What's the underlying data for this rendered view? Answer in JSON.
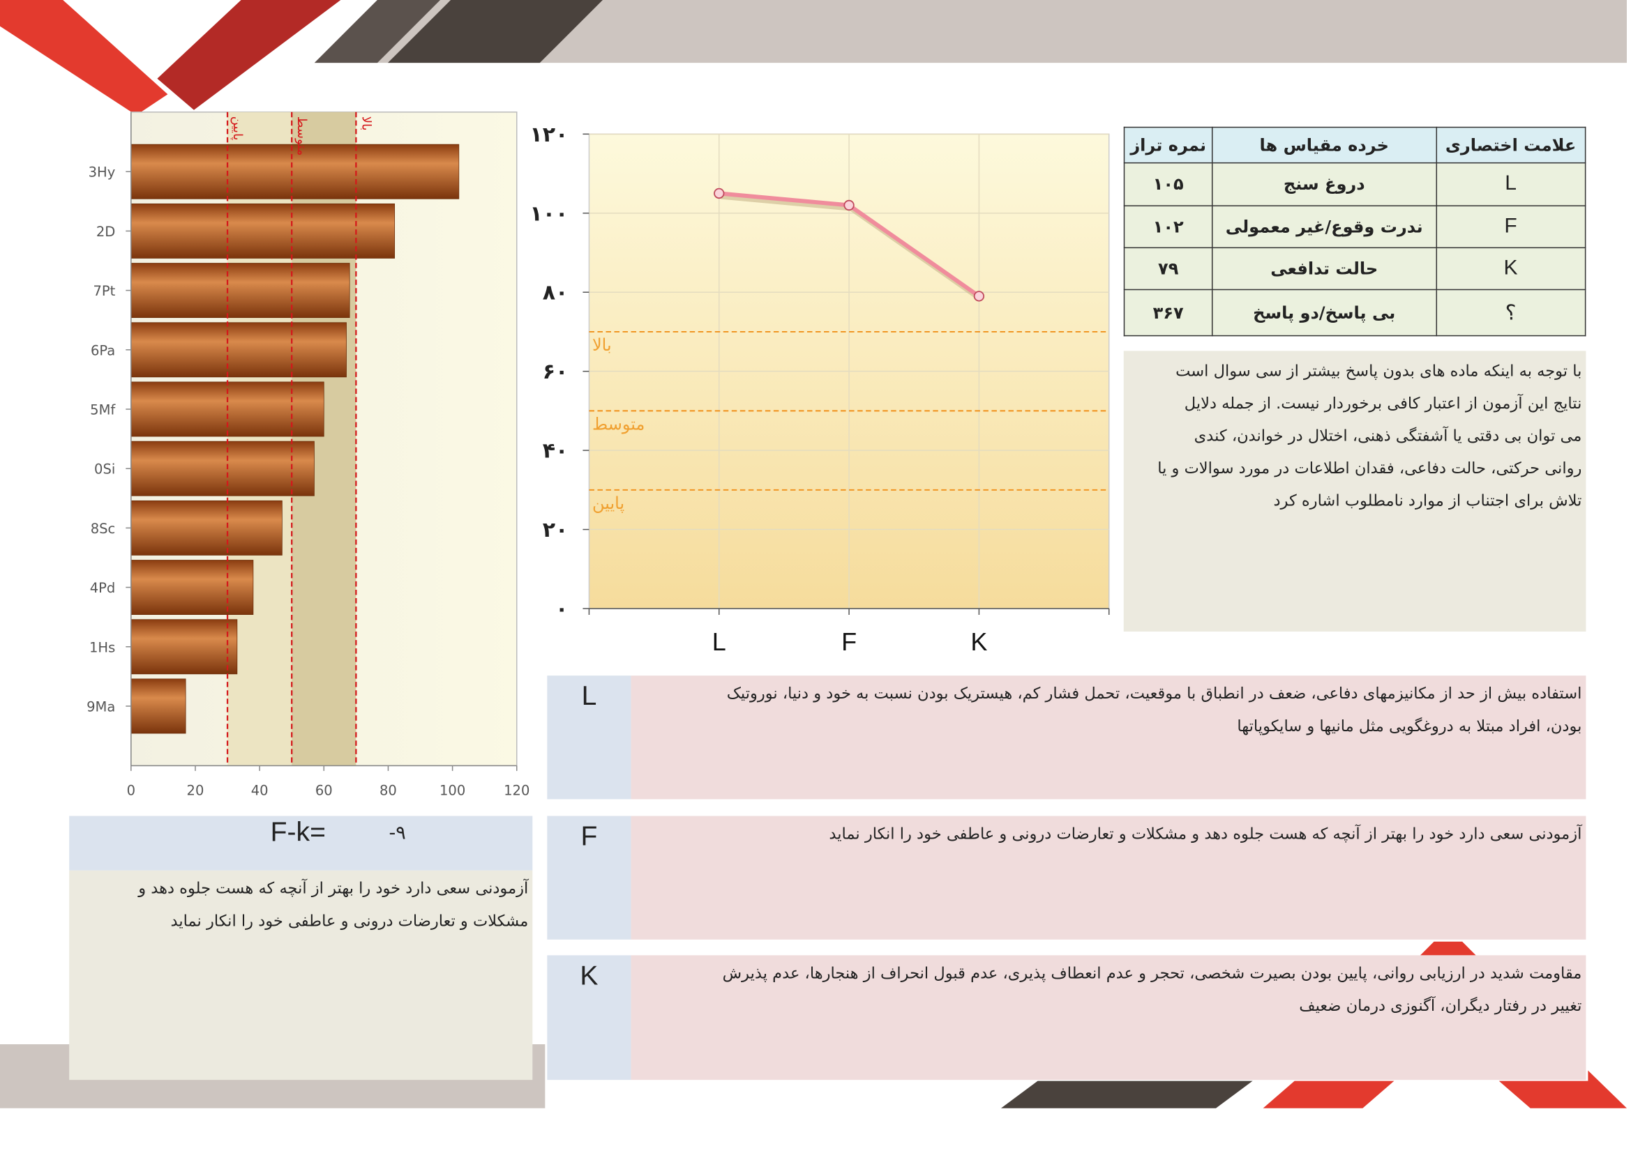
{
  "chart_data": [
    {
      "type": "hbar",
      "categories": [
        "3Hy",
        "2D",
        "7Pt",
        "6Pa",
        "5Mf",
        "0Si",
        "8Sc",
        "4Pd",
        "1Hs",
        "9Ma"
      ],
      "values": [
        102,
        82,
        68,
        67,
        60,
        57,
        47,
        38,
        33,
        17
      ],
      "color": "#b95a20",
      "xlim": [
        0,
        120
      ],
      "xticks": [
        0,
        20,
        40,
        60,
        80,
        100,
        120
      ],
      "reference_lines": [
        {
          "value": 30,
          "label": "پایین"
        },
        {
          "value": 50,
          "label": "متوسط"
        },
        {
          "value": 70,
          "label": "بالا"
        }
      ]
    },
    {
      "type": "line",
      "categories": [
        "L",
        "F",
        "K"
      ],
      "values": [
        105,
        102,
        79
      ],
      "color": "#f08c9c",
      "ylim": [
        0,
        120
      ],
      "yticks": [
        {
          "value": 0,
          "label": "۰"
        },
        {
          "value": 20,
          "label": "۲۰"
        },
        {
          "value": 40,
          "label": "۴۰"
        },
        {
          "value": 60,
          "label": "۶۰"
        },
        {
          "value": 80,
          "label": "۸۰"
        },
        {
          "value": 100,
          "label": "۱۰۰"
        },
        {
          "value": 120,
          "label": "۱۲۰"
        }
      ],
      "reference_lines": [
        {
          "value": 70,
          "label": "بالا"
        },
        {
          "value": 50,
          "label": "متوسط"
        },
        {
          "value": 30,
          "label": "پایین"
        }
      ]
    }
  ],
  "table": {
    "header": [
      "علامت اختصاری",
      "خرده مقیاس ها",
      "نمره تراز"
    ],
    "rows": [
      [
        "L",
        "دروغ سنج",
        "۱۰۵"
      ],
      [
        "F",
        "ندرت وقوع/غیر معمولی",
        "۱۰۲"
      ],
      [
        "K",
        "حالت تدافعی",
        "۷۹"
      ],
      [
        "؟",
        "بی پاسخ/دو پاسخ",
        "۳۶۷"
      ]
    ]
  },
  "note": [
    "با توجه به اینکه ماده های بدون پاسخ بیشتر از سی سوال است",
    "نتایج این آزمون از اعتبار کافی برخوردار نیست. از جمله دلایل",
    "می توان بی دقتی یا آشفتگی ذهنی، اختلال در خواندن، کندی",
    "روانی حرکتی، حالت دفاعی، فقدان اطلاعات در مورد سوالات و یا",
    "تلاش برای اجتناب از موارد نامطلوب اشاره کرد"
  ],
  "fk": {
    "label": "F-k=",
    "value": "-۹",
    "text": [
      "آزمودنی سعی دارد خود را بهتر از آنچه که هست جلوه دهد و",
      "مشکلات و تعارضات درونی و عاطفی خود را انکار نماید"
    ]
  },
  "descriptions": [
    {
      "scale": "L",
      "text": [
        "استفاده بیش از حد از مکانیزمهای دفاعی، ضعف در انطباق با موقعیت، تحمل فشار کم، هیستریک بودن نسبت به خود و دنیا، نوروتیک",
        "بودن، افراد مبتلا به دروغگویی مثل مانیها و سایکوپاتها"
      ]
    },
    {
      "scale": "F",
      "text": [
        "آزمودنی سعی دارد خود را بهتر از آنچه که هست جلوه دهد و مشکلات و تعارضات درونی و عاطفی خود را انکار نماید"
      ]
    },
    {
      "scale": "K",
      "text": [
        "مقاومت شدید در ارزیابی روانی، پایین بودن بصیرت شخصی، تحجر و عدم انعطاف پذیری، عدم قبول انحراف از هنجارها، عدم پذیرش",
        "تغییر در رفتار دیگران، آگنوزی درمان ضعیف"
      ]
    }
  ]
}
